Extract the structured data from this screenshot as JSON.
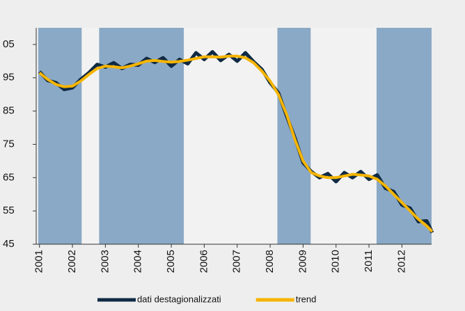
{
  "chart_data": {
    "type": "line",
    "x": [
      2001.0,
      2001.25,
      2001.5,
      2001.75,
      2002.0,
      2002.25,
      2002.5,
      2002.75,
      2003.0,
      2003.25,
      2003.5,
      2003.75,
      2004.0,
      2004.25,
      2004.5,
      2004.75,
      2005.0,
      2005.25,
      2005.5,
      2005.75,
      2006.0,
      2006.25,
      2006.5,
      2006.75,
      2007.0,
      2007.25,
      2007.5,
      2007.75,
      2008.0,
      2008.25,
      2008.5,
      2008.75,
      2009.0,
      2009.25,
      2009.5,
      2009.75,
      2010.0,
      2010.25,
      2010.5,
      2010.75,
      2011.0,
      2011.25,
      2011.5,
      2011.75,
      2012.0,
      2012.25,
      2012.5,
      2012.75,
      2012.92
    ],
    "series": [
      {
        "name": "dati destagionalizzati",
        "color": "#0f2a44",
        "values": [
          96.8,
          94.2,
          93.5,
          91.5,
          92.0,
          94.5,
          96.5,
          99.0,
          98.2,
          99.5,
          97.8,
          99.0,
          98.8,
          100.8,
          99.6,
          101.0,
          98.5,
          100.5,
          99.2,
          102.5,
          100.5,
          102.8,
          100.2,
          102.0,
          100.0,
          102.5,
          99.8,
          97.5,
          93.5,
          90.5,
          83.5,
          77.0,
          69.5,
          66.8,
          65.0,
          66.2,
          63.8,
          66.5,
          65.0,
          66.8,
          64.5,
          65.8,
          61.8,
          60.8,
          56.8,
          55.8,
          51.8,
          52.0,
          48.5
        ]
      },
      {
        "name": "trend",
        "color": "#f5b400",
        "values": [
          96.5,
          94.5,
          93.0,
          92.3,
          92.5,
          94.0,
          96.0,
          97.8,
          98.5,
          98.3,
          98.0,
          98.5,
          99.2,
          100.0,
          100.2,
          99.9,
          99.7,
          99.9,
          100.3,
          100.8,
          101.3,
          101.3,
          101.2,
          101.5,
          101.5,
          101.0,
          99.5,
          97.0,
          94.0,
          90.0,
          84.0,
          76.5,
          70.0,
          66.5,
          65.5,
          65.0,
          65.0,
          65.5,
          66.0,
          65.8,
          65.5,
          64.5,
          62.5,
          60.0,
          57.5,
          55.0,
          52.5,
          50.5,
          48.8
        ]
      }
    ],
    "shaded_periods": [
      [
        2000.96,
        2002.28
      ],
      [
        2002.81,
        2005.38
      ],
      [
        2008.22,
        2009.23
      ],
      [
        2011.23,
        2012.9
      ]
    ],
    "shade_color": "#8aa9c6",
    "xlim": [
      2000.9,
      2012.9
    ],
    "xticks": [
      2001,
      2002,
      2003,
      2004,
      2005,
      2006,
      2007,
      2008,
      2009,
      2010,
      2011,
      2012
    ],
    "ylim": [
      45,
      110
    ],
    "yticks": [
      45,
      55,
      65,
      75,
      85,
      95,
      {
        "value": 105,
        "label": "05"
      }
    ],
    "legend": "bottom"
  }
}
